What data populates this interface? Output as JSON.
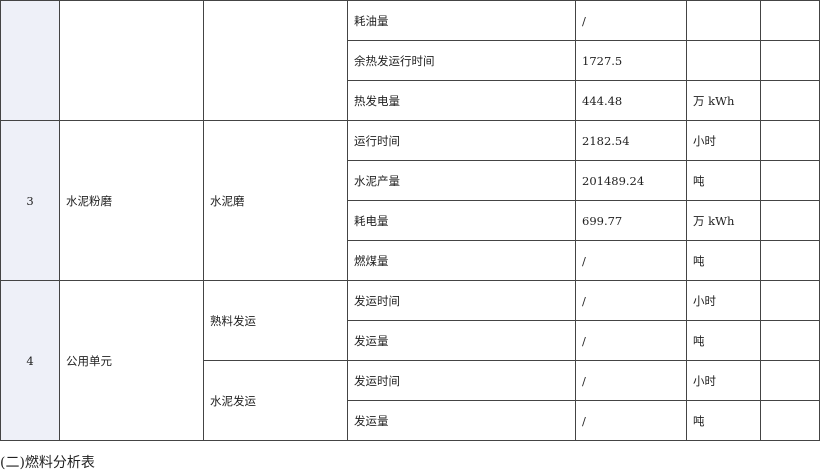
{
  "rows_top": [
    {
      "item": "耗油量",
      "value": "/",
      "unit": ""
    },
    {
      "item": "余热发运行时间",
      "value": "1727.5",
      "unit": ""
    },
    {
      "item": "热发电量",
      "value": "444.48",
      "unit": "万 kWh"
    }
  ],
  "group3": {
    "no": "3",
    "unit_name": "水泥粉磨",
    "equipment": "水泥磨",
    "rows": [
      {
        "item": "运行时间",
        "value": "2182.54",
        "unit": "小时"
      },
      {
        "item": "水泥产量",
        "value": "201489.24",
        "unit": "吨"
      },
      {
        "item": "耗电量",
        "value": "699.77",
        "unit": "万 kWh"
      },
      {
        "item": "燃煤量",
        "value": "/",
        "unit": "吨"
      }
    ]
  },
  "group4": {
    "no": "4",
    "unit_name": "公用单元",
    "sub1": {
      "equipment": "熟料发运",
      "rows": [
        {
          "item": "发运时间",
          "value": "/",
          "unit": "小时"
        },
        {
          "item": "发运量",
          "value": "/",
          "unit": "吨"
        }
      ]
    },
    "sub2": {
      "equipment": "水泥发运",
      "rows": [
        {
          "item": "发运时间",
          "value": "/",
          "unit": "小时"
        },
        {
          "item": "发运量",
          "value": "/",
          "unit": "吨"
        }
      ]
    }
  },
  "caption": "(二)燃料分析表"
}
